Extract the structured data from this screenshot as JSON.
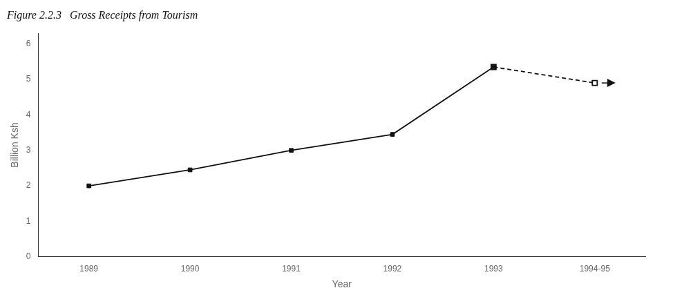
{
  "chart_data": {
    "type": "line",
    "title": "Figure 2.2.3   Gross Receipts from Tourism",
    "x_label": "Year",
    "y_label": "Billion Ksh",
    "categories": [
      "1989",
      "1990",
      "1991",
      "1992",
      "1993",
      "1994-95"
    ],
    "series": [
      {
        "color": "#111111",
        "line_style": "solid",
        "marker": "square",
        "values": [
          2.0,
          2.45,
          3.0,
          3.45,
          5.35,
          null
        ]
      },
      {
        "color": "#111111",
        "line_style": "dashed",
        "marker": "open-square",
        "values": [
          null,
          null,
          null,
          null,
          5.35,
          4.9
        ]
      }
    ],
    "ylim": [
      0,
      6.3
    ],
    "yticks": [
      0,
      1,
      2,
      3,
      4,
      5,
      6
    ],
    "grid": false
  }
}
